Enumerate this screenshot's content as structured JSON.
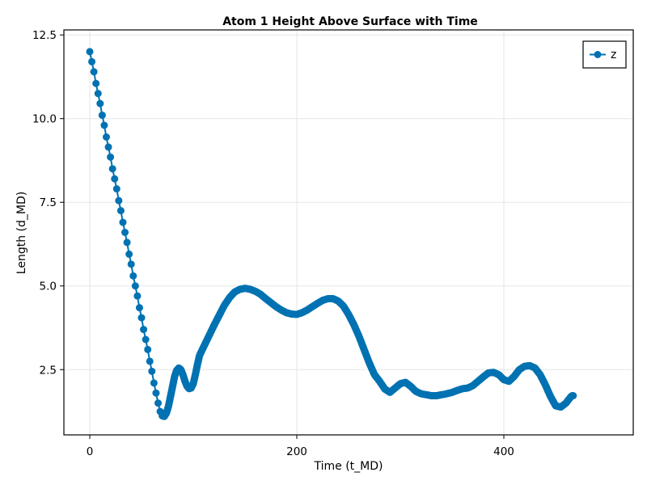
{
  "chart_data": {
    "type": "scatter",
    "title": "Atom 1 Height Above Surface with Time",
    "xlabel": "Time (t_MD)",
    "ylabel": "Length (d_MD)",
    "xlim": [
      -25,
      525
    ],
    "ylim": [
      0.55,
      12.65
    ],
    "xticks": [
      0,
      200,
      400
    ],
    "xtick_labels": [
      "0",
      "200",
      "400"
    ],
    "yticks": [
      2.5,
      5.0,
      7.5,
      10.0,
      12.5
    ],
    "ytick_labels": [
      "2.5",
      "5.0",
      "7.5",
      "10.0",
      "12.5"
    ],
    "grid": true,
    "legend_position": "top-right",
    "series": [
      {
        "name": "z",
        "color": "#0072b2",
        "marker": "circle",
        "line": true,
        "points": [
          [
            0,
            12.0
          ],
          [
            2,
            11.7
          ],
          [
            4,
            11.4
          ],
          [
            6,
            11.05
          ],
          [
            8,
            10.75
          ],
          [
            10,
            10.45
          ],
          [
            12,
            10.1
          ],
          [
            14,
            9.8
          ],
          [
            16,
            9.45
          ],
          [
            18,
            9.15
          ],
          [
            20,
            8.85
          ],
          [
            22,
            8.5
          ],
          [
            24,
            8.2
          ],
          [
            26,
            7.9
          ],
          [
            28,
            7.55
          ],
          [
            30,
            7.25
          ],
          [
            32,
            6.9
          ],
          [
            34,
            6.6
          ],
          [
            36,
            6.3
          ],
          [
            38,
            5.95
          ],
          [
            40,
            5.65
          ],
          [
            42,
            5.3
          ],
          [
            44,
            5.0
          ],
          [
            46,
            4.7
          ],
          [
            48,
            4.35
          ],
          [
            50,
            4.05
          ],
          [
            52,
            3.7
          ],
          [
            54,
            3.4
          ],
          [
            56,
            3.1
          ],
          [
            58,
            2.75
          ],
          [
            60,
            2.45
          ],
          [
            62,
            2.1
          ],
          [
            64,
            1.8
          ],
          [
            66,
            1.5
          ],
          [
            68,
            1.25
          ],
          [
            70,
            1.12
          ],
          [
            72,
            1.1
          ],
          [
            74,
            1.2
          ],
          [
            76,
            1.4
          ],
          [
            78,
            1.7
          ],
          [
            80,
            2.0
          ],
          [
            82,
            2.3
          ],
          [
            84,
            2.48
          ],
          [
            86,
            2.55
          ],
          [
            88,
            2.5
          ],
          [
            90,
            2.35
          ],
          [
            92,
            2.15
          ],
          [
            94,
            2.0
          ],
          [
            96,
            1.93
          ],
          [
            98,
            1.95
          ],
          [
            100,
            2.08
          ],
          [
            102,
            2.35
          ],
          [
            104,
            2.65
          ],
          [
            106,
            2.92
          ],
          [
            110,
            3.18
          ],
          [
            115,
            3.5
          ],
          [
            120,
            3.82
          ],
          [
            125,
            4.12
          ],
          [
            130,
            4.42
          ],
          [
            135,
            4.65
          ],
          [
            140,
            4.82
          ],
          [
            145,
            4.9
          ],
          [
            150,
            4.93
          ],
          [
            155,
            4.9
          ],
          [
            160,
            4.84
          ],
          [
            165,
            4.75
          ],
          [
            170,
            4.62
          ],
          [
            175,
            4.5
          ],
          [
            180,
            4.38
          ],
          [
            185,
            4.28
          ],
          [
            190,
            4.2
          ],
          [
            195,
            4.16
          ],
          [
            200,
            4.15
          ],
          [
            205,
            4.2
          ],
          [
            210,
            4.28
          ],
          [
            215,
            4.38
          ],
          [
            220,
            4.48
          ],
          [
            225,
            4.57
          ],
          [
            230,
            4.62
          ],
          [
            235,
            4.62
          ],
          [
            240,
            4.55
          ],
          [
            245,
            4.4
          ],
          [
            250,
            4.15
          ],
          [
            255,
            3.85
          ],
          [
            260,
            3.5
          ],
          [
            265,
            3.1
          ],
          [
            270,
            2.7
          ],
          [
            275,
            2.35
          ],
          [
            280,
            2.15
          ],
          [
            285,
            1.92
          ],
          [
            290,
            1.82
          ],
          [
            295,
            1.95
          ],
          [
            300,
            2.08
          ],
          [
            305,
            2.12
          ],
          [
            310,
            2.0
          ],
          [
            315,
            1.85
          ],
          [
            320,
            1.78
          ],
          [
            325,
            1.75
          ],
          [
            330,
            1.72
          ],
          [
            335,
            1.72
          ],
          [
            340,
            1.75
          ],
          [
            345,
            1.78
          ],
          [
            350,
            1.82
          ],
          [
            355,
            1.88
          ],
          [
            360,
            1.93
          ],
          [
            365,
            1.95
          ],
          [
            370,
            2.02
          ],
          [
            375,
            2.15
          ],
          [
            380,
            2.28
          ],
          [
            385,
            2.4
          ],
          [
            390,
            2.42
          ],
          [
            395,
            2.35
          ],
          [
            400,
            2.2
          ],
          [
            405,
            2.15
          ],
          [
            410,
            2.3
          ],
          [
            415,
            2.5
          ],
          [
            420,
            2.6
          ],
          [
            425,
            2.62
          ],
          [
            430,
            2.55
          ],
          [
            435,
            2.35
          ],
          [
            440,
            2.05
          ],
          [
            445,
            1.7
          ],
          [
            450,
            1.42
          ],
          [
            455,
            1.38
          ],
          [
            460,
            1.5
          ],
          [
            465,
            1.7
          ],
          [
            466,
            1.72
          ],
          [
            467,
            1.72
          ]
        ]
      }
    ]
  }
}
